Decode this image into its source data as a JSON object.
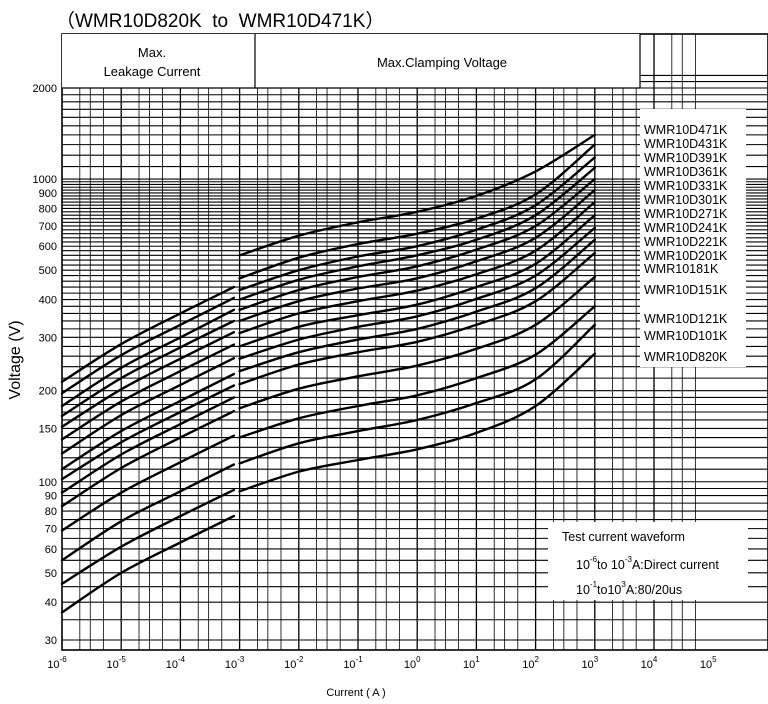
{
  "title": "（WMR10D820K  to  WMR10D471K）",
  "header": {
    "leakage_line1": "Max.",
    "leakage_line2": "Leakage Current",
    "clamping": "Max.Clamping Voltage"
  },
  "note": {
    "line1": "Test current waveform",
    "line2_prefix": "10",
    "line2_exp1": "-6",
    "line2_mid": "to 10",
    "line2_exp2": "-3",
    "line2_suffix": "A:Direct current",
    "line3_prefix": "10",
    "line3_exp1": "-1",
    "line3_mid": "to10",
    "line3_exp2": "3",
    "line3_suffix": "A:80/20us"
  },
  "chart_data": {
    "type": "line",
    "xscale": "log",
    "yscale": "log",
    "xlabel": "Current ( A )",
    "ylabel": "Voltage  (V)",
    "xlim": [
      1e-06,
      100000.0
    ],
    "ylim": [
      28,
      2200
    ],
    "x_ticks": [
      {
        "base": "10",
        "exp": "-6",
        "value": 1e-06
      },
      {
        "base": "10",
        "exp": "-5",
        "value": 1e-05
      },
      {
        "base": "10",
        "exp": "-4",
        "value": 0.0001
      },
      {
        "base": "10",
        "exp": "-3",
        "value": 0.001
      },
      {
        "base": "10",
        "exp": "-2",
        "value": 0.01
      },
      {
        "base": "10",
        "exp": "-1",
        "value": 0.1
      },
      {
        "base": "10",
        "exp": "0",
        "value": 1
      },
      {
        "base": "10",
        "exp": "1",
        "value": 10
      },
      {
        "base": "10",
        "exp": "2",
        "value": 100
      },
      {
        "base": "10",
        "exp": "3",
        "value": 1000
      },
      {
        "base": "10",
        "exp": "4",
        "value": 10000
      },
      {
        "base": "10",
        "exp": "5",
        "value": 100000
      }
    ],
    "y_ticks": [
      {
        "label": "30",
        "value": 30
      },
      {
        "label": "40",
        "value": 40
      },
      {
        "label": "50",
        "value": 50
      },
      {
        "label": "60",
        "value": 60
      },
      {
        "label": "70",
        "value": 70
      },
      {
        "label": "80",
        "value": 80
      },
      {
        "label": "90",
        "value": 90
      },
      {
        "label": "100",
        "value": 100
      },
      {
        "label": "150",
        "value": 150
      },
      {
        "label": "200",
        "value": 200
      },
      {
        "label": "300",
        "value": 300
      },
      {
        "label": "400",
        "value": 400
      },
      {
        "label": "500",
        "value": 500
      },
      {
        "label": "600",
        "value": 600
      },
      {
        "label": "700",
        "value": 700
      },
      {
        "label": "800",
        "value": 800
      },
      {
        "label": "900",
        "value": 900
      },
      {
        "label": "1000",
        "value": 1000
      },
      {
        "label": "2000",
        "value": 2000
      }
    ],
    "series": [
      {
        "name": "WMR10D471K",
        "leakage": [
          [
            1e-06,
            214
          ],
          [
            1e-05,
            285
          ],
          [
            0.0001,
            360
          ],
          [
            0.0008,
            440
          ]
        ],
        "clamping": [
          [
            0.001,
            560
          ],
          [
            0.01,
            650
          ],
          [
            0.1,
            720
          ],
          [
            1,
            780
          ],
          [
            10,
            880
          ],
          [
            100,
            1060
          ],
          [
            1000,
            1400
          ]
        ]
      },
      {
        "name": "WMR10D431K",
        "leakage": [
          [
            1e-06,
            196
          ],
          [
            1e-05,
            262
          ],
          [
            0.0001,
            330
          ],
          [
            0.0008,
            405
          ]
        ],
        "clamping": [
          [
            0.001,
            470
          ],
          [
            0.01,
            550
          ],
          [
            0.1,
            610
          ],
          [
            1,
            660
          ],
          [
            10,
            740
          ],
          [
            100,
            890
          ],
          [
            1000,
            1300
          ]
        ]
      },
      {
        "name": "WMR10D391K",
        "leakage": [
          [
            1e-06,
            178
          ],
          [
            1e-05,
            238
          ],
          [
            0.0001,
            300
          ],
          [
            0.0008,
            370
          ]
        ],
        "clamping": [
          [
            0.001,
            430
          ],
          [
            0.01,
            500
          ],
          [
            0.1,
            555
          ],
          [
            1,
            600
          ],
          [
            10,
            680
          ],
          [
            100,
            820
          ],
          [
            1000,
            1180
          ]
        ]
      },
      {
        "name": "WMR10D361K",
        "leakage": [
          [
            1e-06,
            165
          ],
          [
            1e-05,
            220
          ],
          [
            0.0001,
            278
          ],
          [
            0.0008,
            340
          ]
        ],
        "clamping": [
          [
            0.001,
            400
          ],
          [
            0.01,
            465
          ],
          [
            0.1,
            515
          ],
          [
            1,
            560
          ],
          [
            10,
            630
          ],
          [
            100,
            760
          ],
          [
            1000,
            1090
          ]
        ]
      },
      {
        "name": "WMR10D331K",
        "leakage": [
          [
            1e-06,
            152
          ],
          [
            1e-05,
            202
          ],
          [
            0.0001,
            255
          ],
          [
            0.0008,
            312
          ]
        ],
        "clamping": [
          [
            0.001,
            370
          ],
          [
            0.01,
            430
          ],
          [
            0.1,
            475
          ],
          [
            1,
            515
          ],
          [
            10,
            585
          ],
          [
            100,
            700
          ],
          [
            1000,
            1000
          ]
        ]
      },
      {
        "name": "WMR10D301K",
        "leakage": [
          [
            1e-06,
            138
          ],
          [
            1e-05,
            184
          ],
          [
            0.0001,
            232
          ],
          [
            0.0008,
            284
          ]
        ],
        "clamping": [
          [
            0.001,
            340
          ],
          [
            0.01,
            395
          ],
          [
            0.1,
            435
          ],
          [
            1,
            470
          ],
          [
            10,
            535
          ],
          [
            100,
            640
          ],
          [
            1000,
            920
          ]
        ]
      },
      {
        "name": "WMR10D271K",
        "leakage": [
          [
            1e-06,
            124
          ],
          [
            1e-05,
            166
          ],
          [
            0.0001,
            209
          ],
          [
            0.0008,
            256
          ]
        ],
        "clamping": [
          [
            0.001,
            310
          ],
          [
            0.01,
            360
          ],
          [
            0.1,
            395
          ],
          [
            1,
            428
          ],
          [
            10,
            485
          ],
          [
            100,
            580
          ],
          [
            1000,
            840
          ]
        ]
      },
      {
        "name": "WMR10D241K",
        "leakage": [
          [
            1e-06,
            110
          ],
          [
            1e-05,
            147
          ],
          [
            0.0001,
            185
          ],
          [
            0.0008,
            227
          ]
        ],
        "clamping": [
          [
            0.001,
            280
          ],
          [
            0.01,
            325
          ],
          [
            0.1,
            355
          ],
          [
            1,
            385
          ],
          [
            10,
            440
          ],
          [
            100,
            525
          ],
          [
            1000,
            760
          ]
        ]
      },
      {
        "name": "WMR10D221K",
        "leakage": [
          [
            1e-06,
            102
          ],
          [
            1e-05,
            135
          ],
          [
            0.0001,
            170
          ],
          [
            0.0008,
            208
          ]
        ],
        "clamping": [
          [
            0.001,
            255
          ],
          [
            0.01,
            295
          ],
          [
            0.1,
            325
          ],
          [
            1,
            352
          ],
          [
            10,
            402
          ],
          [
            100,
            480
          ],
          [
            1000,
            690
          ]
        ]
      },
      {
        "name": "WMR10D201K",
        "leakage": [
          [
            1e-06,
            92
          ],
          [
            1e-05,
            123
          ],
          [
            0.0001,
            155
          ],
          [
            0.0008,
            190
          ]
        ],
        "clamping": [
          [
            0.001,
            232
          ],
          [
            0.01,
            268
          ],
          [
            0.1,
            295
          ],
          [
            1,
            320
          ],
          [
            10,
            365
          ],
          [
            100,
            436
          ],
          [
            1000,
            630
          ]
        ]
      },
      {
        "name": "WMR10181K",
        "leakage": [
          [
            1e-06,
            83
          ],
          [
            1e-05,
            111
          ],
          [
            0.0001,
            140
          ],
          [
            0.0008,
            171
          ]
        ],
        "clamping": [
          [
            0.001,
            210
          ],
          [
            0.01,
            244
          ],
          [
            0.1,
            268
          ],
          [
            1,
            290
          ],
          [
            10,
            330
          ],
          [
            100,
            395
          ],
          [
            1000,
            570
          ]
        ]
      },
      {
        "name": "WMR10D151K",
        "leakage": [
          [
            1e-06,
            69
          ],
          [
            1e-05,
            92
          ],
          [
            0.0001,
            116
          ],
          [
            0.0008,
            142
          ]
        ],
        "clamping": [
          [
            0.001,
            175
          ],
          [
            0.01,
            203
          ],
          [
            0.1,
            223
          ],
          [
            1,
            242
          ],
          [
            10,
            275
          ],
          [
            100,
            330
          ],
          [
            1000,
            475
          ]
        ]
      },
      {
        "name": "WMR10D121K",
        "leakage": [
          [
            1e-06,
            55
          ],
          [
            1e-05,
            74
          ],
          [
            0.0001,
            93
          ],
          [
            0.0008,
            114
          ]
        ],
        "clamping": [
          [
            0.001,
            140
          ],
          [
            0.01,
            162
          ],
          [
            0.1,
            178
          ],
          [
            1,
            193
          ],
          [
            10,
            220
          ],
          [
            100,
            263
          ],
          [
            1000,
            380
          ]
        ]
      },
      {
        "name": "WMR10D101K",
        "leakage": [
          [
            1e-06,
            46
          ],
          [
            1e-05,
            61
          ],
          [
            0.0001,
            77
          ],
          [
            0.0008,
            94
          ]
        ],
        "clamping": [
          [
            0.001,
            115
          ],
          [
            0.01,
            134
          ],
          [
            0.1,
            147
          ],
          [
            1,
            160
          ],
          [
            10,
            182
          ],
          [
            100,
            218
          ],
          [
            1000,
            330
          ]
        ]
      },
      {
        "name": "WMR10D820K",
        "leakage": [
          [
            1e-06,
            37
          ],
          [
            1e-05,
            50
          ],
          [
            0.0001,
            63
          ],
          [
            0.0008,
            77
          ]
        ],
        "clamping": [
          [
            0.001,
            93
          ],
          [
            0.01,
            108
          ],
          [
            0.1,
            118
          ],
          [
            1,
            128
          ],
          [
            10,
            145
          ],
          [
            100,
            178
          ],
          [
            1000,
            265
          ]
        ]
      }
    ]
  }
}
